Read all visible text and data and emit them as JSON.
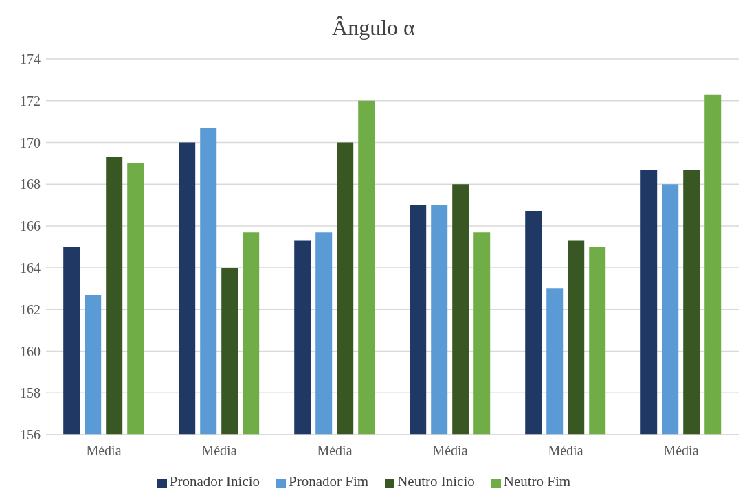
{
  "chart_data": {
    "type": "bar",
    "title": "Ângulo α",
    "categories": [
      "Média",
      "Média",
      "Média",
      "Média",
      "Média",
      "Média"
    ],
    "series": [
      {
        "name": "Pronador Início",
        "color": "#203864",
        "values": [
          165.0,
          170.0,
          165.3,
          167.0,
          166.7,
          168.7
        ]
      },
      {
        "name": "Pronador Fim",
        "color": "#5b9bd5",
        "values": [
          162.7,
          170.7,
          165.7,
          167.0,
          163.0,
          168.0
        ]
      },
      {
        "name": "Neutro Início",
        "color": "#385723",
        "values": [
          169.3,
          164.0,
          170.0,
          168.0,
          165.3,
          168.7
        ]
      },
      {
        "name": "Neutro Fim",
        "color": "#70ad47",
        "values": [
          169.0,
          165.7,
          172.0,
          165.7,
          165.0,
          172.3
        ]
      }
    ],
    "ylim": [
      156,
      174
    ],
    "yticks": [
      156,
      158,
      160,
      162,
      164,
      166,
      168,
      170,
      172,
      174
    ],
    "grid": "y",
    "legend": "bottom"
  }
}
